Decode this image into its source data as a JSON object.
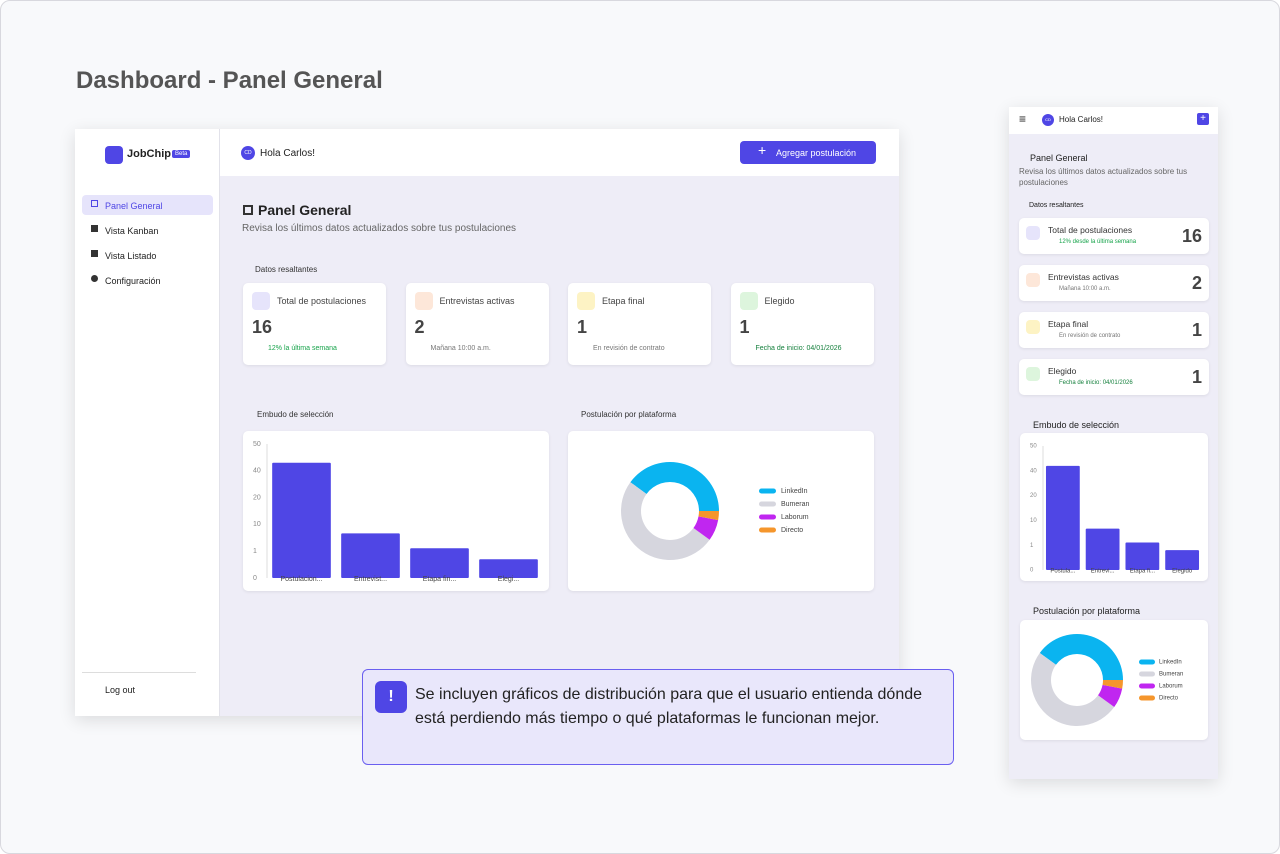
{
  "page_title": "Dashboard - Panel General",
  "desktop": {
    "brand": "JobChip",
    "badge": "Beta",
    "nav": [
      "Panel General",
      "Vista Kanban",
      "Vista Listado",
      "Configuración"
    ],
    "logout": "Log out",
    "avatar": "CD",
    "greeting": "Hola Carlos!",
    "add_button": "Agregar postulación",
    "heading": "Panel General",
    "subheading": "Revisa los últimos datos actualizados sobre tus postulaciones",
    "section": "Datos resaltantes",
    "cards": [
      {
        "label": "Total de postulaciones",
        "value": 16,
        "note": "12% la última semana"
      },
      {
        "label": "Entrevistas activas",
        "value": 2,
        "note": "Mañana 10:00 a.m."
      },
      {
        "label": "Etapa final",
        "value": 1,
        "note": "En revisión de contrato"
      },
      {
        "label": "Elegido",
        "value": 1,
        "note": "Fecha de inicio: 04/01/2026"
      }
    ]
  },
  "mobile": {
    "avatar": "CD",
    "greeting": "Hola Carlos!",
    "heading": "Panel General",
    "subheading": "Revisa los últimos datos actualizados sobre tus postulaciones",
    "section": "Datos resaltantes",
    "cards": [
      {
        "label": "Total de postulaciones",
        "value": 16,
        "note": "12% desde la última semana"
      },
      {
        "label": "Entrevistas activas",
        "value": 2,
        "note": "Mañana 10:00 a.m."
      },
      {
        "label": "Etapa final",
        "value": 1,
        "note": "En revisión de contrato"
      },
      {
        "label": "Elegido",
        "value": 1,
        "note": "Fecha de inicio: 04/01/2026"
      }
    ]
  },
  "chart_data": [
    {
      "type": "bar",
      "title": "Embudo de selección",
      "categories": [
        "Postulacion...",
        "Entrevist...",
        "Etapa fin...",
        "Elegi..."
      ],
      "values": [
        43,
        7,
        2,
        0.7
      ],
      "color": "#4f46e5",
      "ylim": [
        0,
        50
      ],
      "yticks": [
        0,
        1,
        10,
        20,
        40,
        50
      ]
    },
    {
      "type": "pie",
      "title": "Postulación por plataforma",
      "categories": [
        "LinkedIn",
        "Bumeran",
        "Laborum",
        "Directo"
      ],
      "values": [
        40,
        50,
        7,
        3
      ],
      "colors": [
        "#0ab4f0",
        "#d6d6de",
        "#c026f0",
        "#f5962c"
      ]
    },
    {
      "type": "bar",
      "title": "Embudo de selección",
      "categories": [
        "Postula...",
        "Entrevi...",
        "Etapa fi...",
        "Elegido"
      ],
      "values": [
        42,
        7,
        2,
        0.8
      ],
      "color": "#4f46e5",
      "ylim": [
        0,
        50
      ],
      "yticks": [
        0,
        1,
        10,
        20,
        40,
        50
      ]
    },
    {
      "type": "pie",
      "title": "Postulación por plataforma",
      "categories": [
        "LinkedIn",
        "Bumeran",
        "Laborum",
        "Directo"
      ],
      "values": [
        40,
        50,
        7,
        3
      ],
      "colors": [
        "#0ab4f0",
        "#d6d6de",
        "#c026f0",
        "#f5962c"
      ]
    }
  ],
  "callout": "Se incluyen gráficos de distribución para que el usuario entienda dónde está perdiendo más tiempo o qué plataformas le funcionan mejor."
}
